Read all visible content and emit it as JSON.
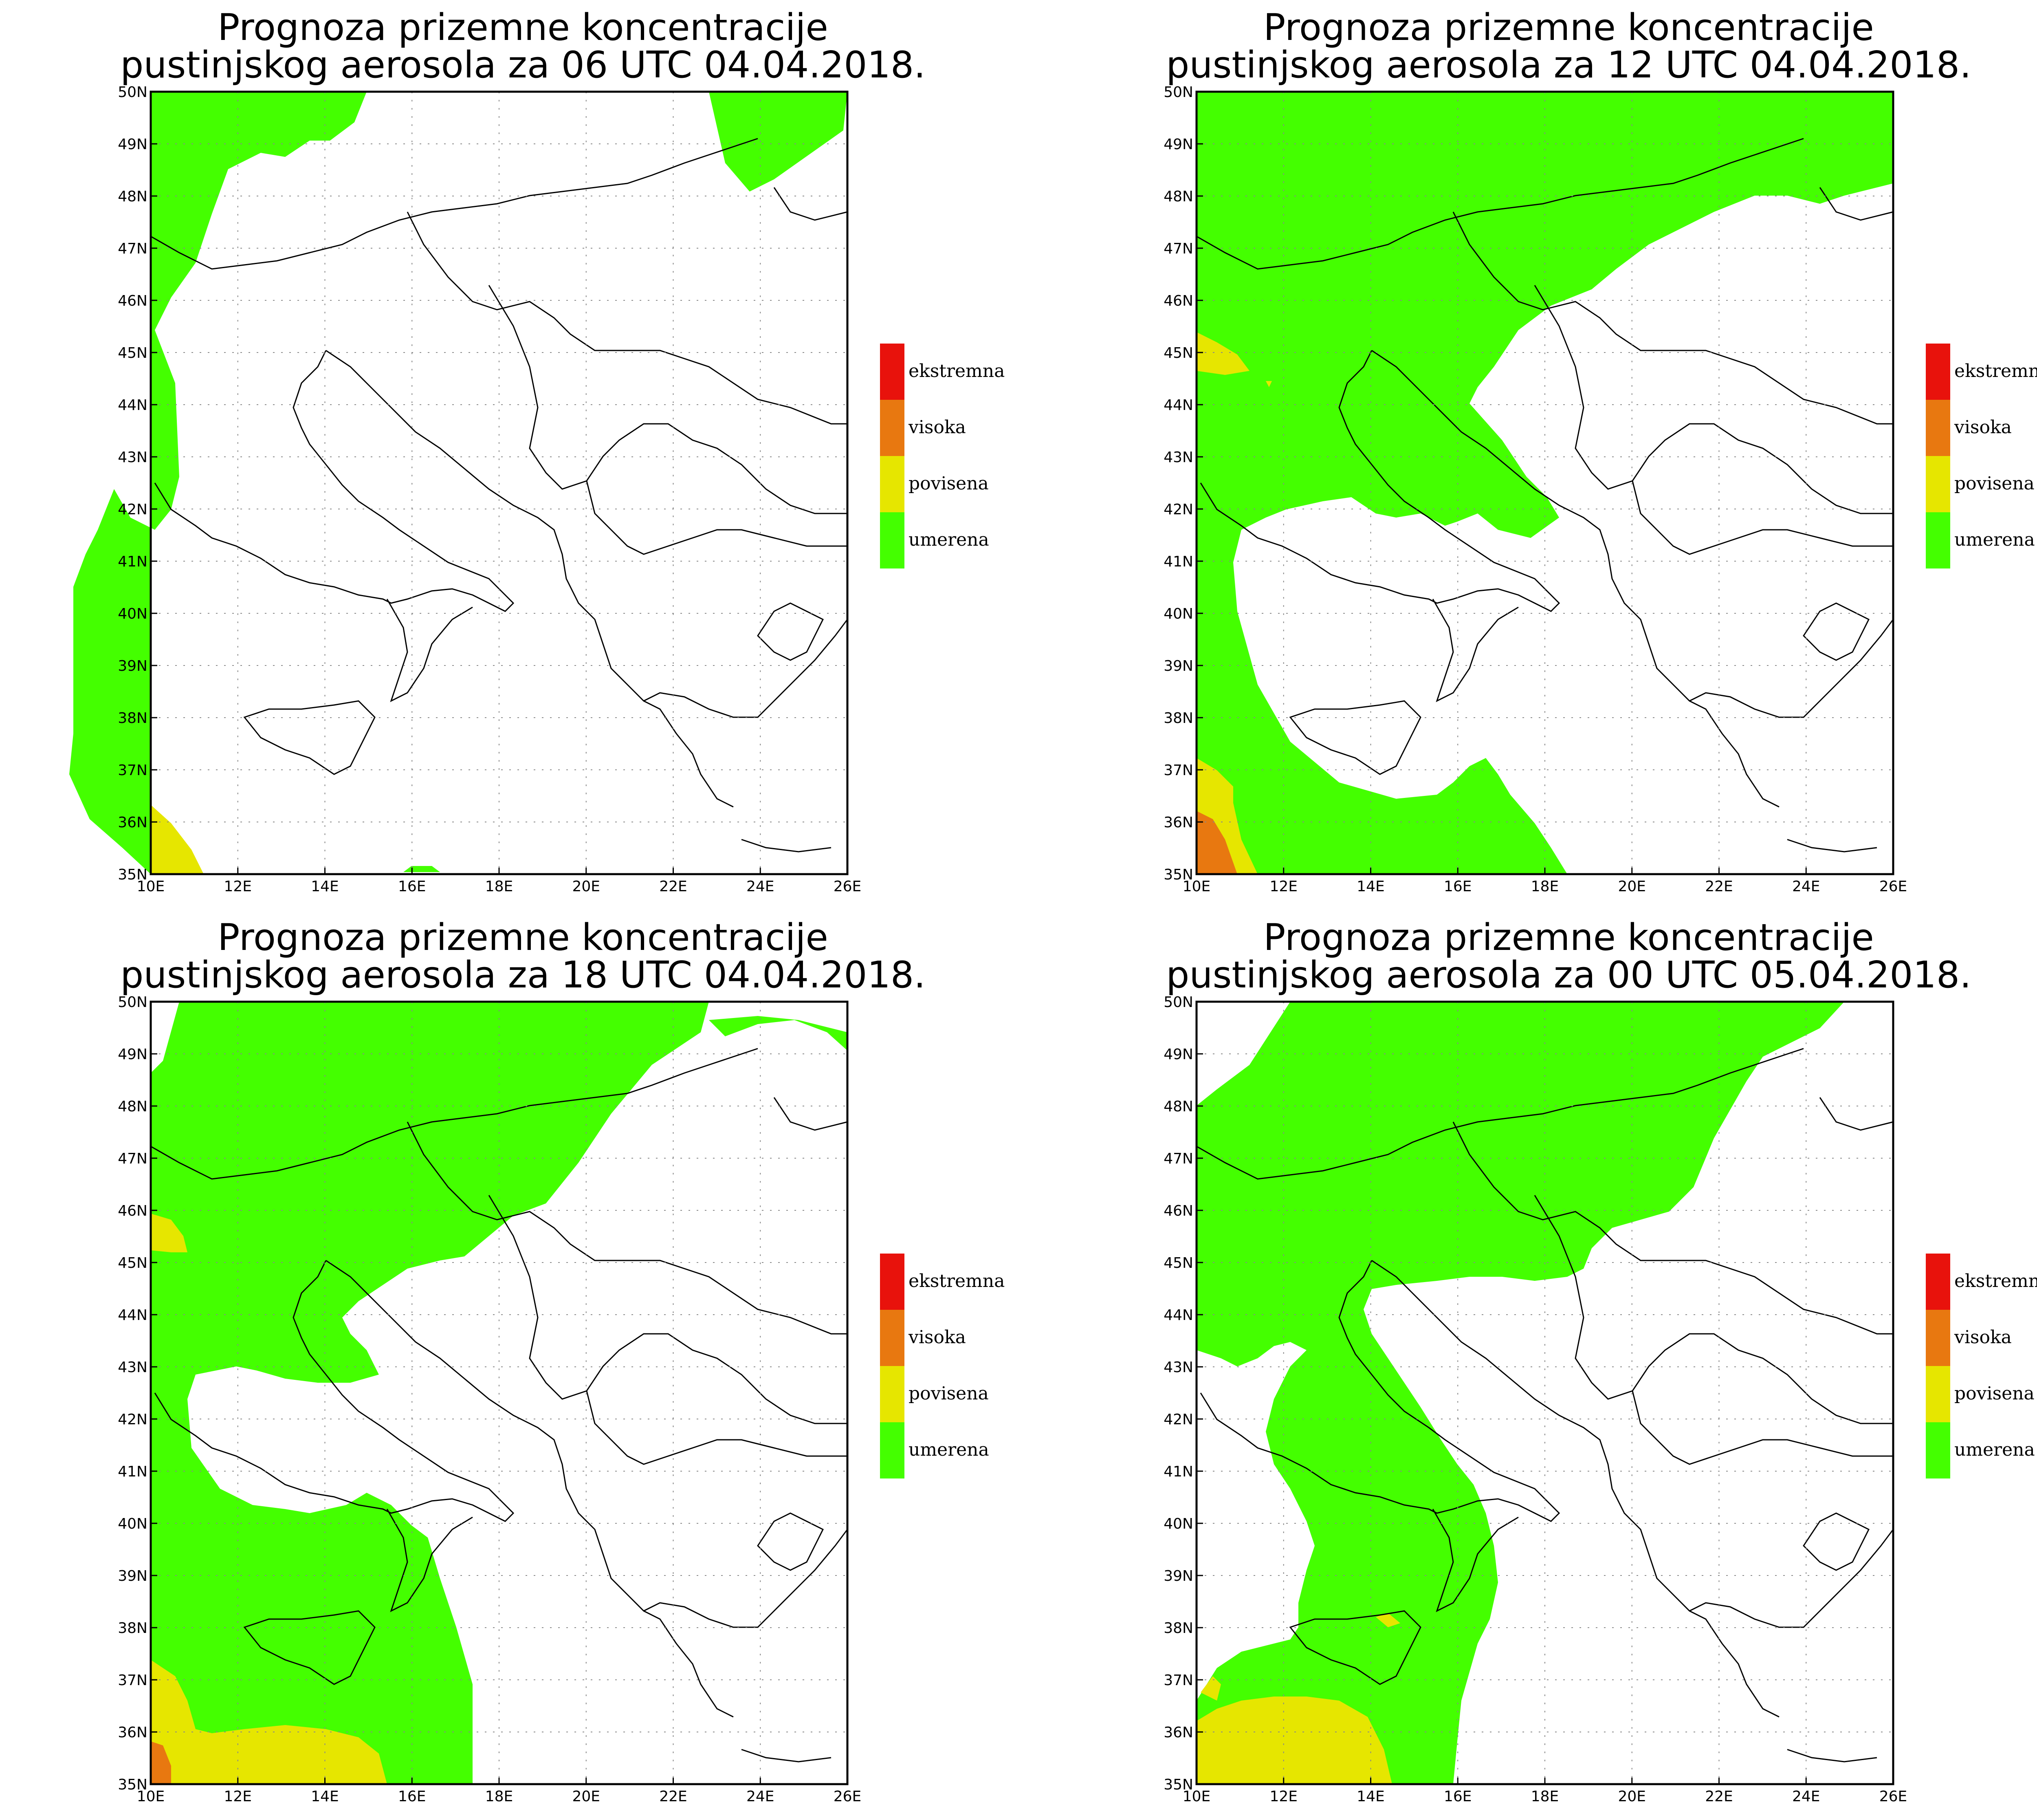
{
  "title_line1": "Prognoza prizemne koncentracije",
  "panels": [
    {
      "title_line2": "pustinjskog aerosola za 06 UTC 04.04.2018."
    },
    {
      "title_line2": "pustinjskog aerosola za 12 UTC 04.04.2018."
    },
    {
      "title_line2": "pustinjskog aerosola za 18 UTC 04.04.2018."
    },
    {
      "title_line2": "pustinjskog aerosola za 00 UTC 05.04.2018."
    }
  ],
  "axes": {
    "lon_labels": [
      "10E",
      "12E",
      "14E",
      "16E",
      "18E",
      "20E",
      "22E",
      "24E",
      "26E"
    ],
    "lat_labels": [
      "35N",
      "36N",
      "37N",
      "38N",
      "39N",
      "40N",
      "41N",
      "42N",
      "43N",
      "44N",
      "45N",
      "46N",
      "47N",
      "48N",
      "49N",
      "50N"
    ],
    "lon_range": [
      10,
      26
    ],
    "lat_range": [
      35,
      50
    ],
    "grid": "dotted"
  },
  "legend": [
    {
      "label": "ekstremna",
      "color": "#e8120c"
    },
    {
      "label": "visoka",
      "color": "#e87810"
    },
    {
      "label": "povisena",
      "color": "#e6e600"
    },
    {
      "label": "umerena",
      "color": "#44ff00"
    }
  ]
}
